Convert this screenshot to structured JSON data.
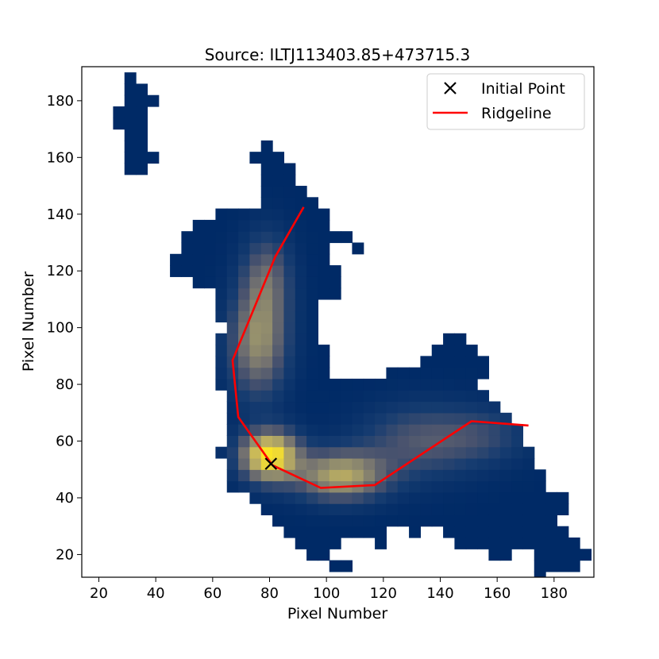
{
  "chart_data": {
    "type": "heatmap",
    "title": "Source: ILTJ113403.85+473715.3",
    "xlabel": "Pixel Number",
    "ylabel": "Pixel Number",
    "xlim": [
      14,
      194
    ],
    "ylim": [
      12,
      192
    ],
    "xticks": [
      20,
      40,
      60,
      80,
      100,
      120,
      140,
      160,
      180
    ],
    "yticks": [
      20,
      40,
      60,
      80,
      100,
      120,
      140,
      160,
      180
    ],
    "grid": false,
    "legend_position": "top-right",
    "colormap": "cividis",
    "mask_color": "#002a66",
    "peak_color": "#f7dc2a",
    "components": [
      {
        "center": [
          80,
          55
        ],
        "sigma": [
          7,
          6
        ],
        "amplitude": 1.0
      },
      {
        "center": [
          105,
          48
        ],
        "sigma": [
          11,
          6
        ],
        "amplitude": 0.68
      },
      {
        "center": [
          76,
          95
        ],
        "sigma": [
          7,
          13
        ],
        "amplitude": 0.55
      },
      {
        "center": [
          79,
          118
        ],
        "sigma": [
          6,
          11
        ],
        "amplitude": 0.35
      },
      {
        "center": [
          132,
          60
        ],
        "sigma": [
          14,
          9
        ],
        "amplitude": 0.3
      },
      {
        "center": [
          155,
          62
        ],
        "sigma": [
          12,
          7
        ],
        "amplitude": 0.2
      }
    ],
    "series": [
      {
        "name": "Initial Point",
        "type": "marker",
        "marker": "x",
        "color": "#000000",
        "points": [
          [
            80.5,
            52
          ]
        ]
      },
      {
        "name": "Ridgeline",
        "type": "line",
        "color": "#ff0000",
        "points": [
          [
            92,
            142.5
          ],
          [
            82,
            125
          ],
          [
            73,
            103
          ],
          [
            67,
            88.5
          ],
          [
            69,
            68.5
          ],
          [
            81,
            51.5
          ],
          [
            98,
            43.5
          ],
          [
            117,
            44.5
          ],
          [
            151,
            67
          ],
          [
            171,
            65.5
          ]
        ]
      }
    ],
    "legend": [
      "Initial Point",
      "Ridgeline"
    ]
  }
}
